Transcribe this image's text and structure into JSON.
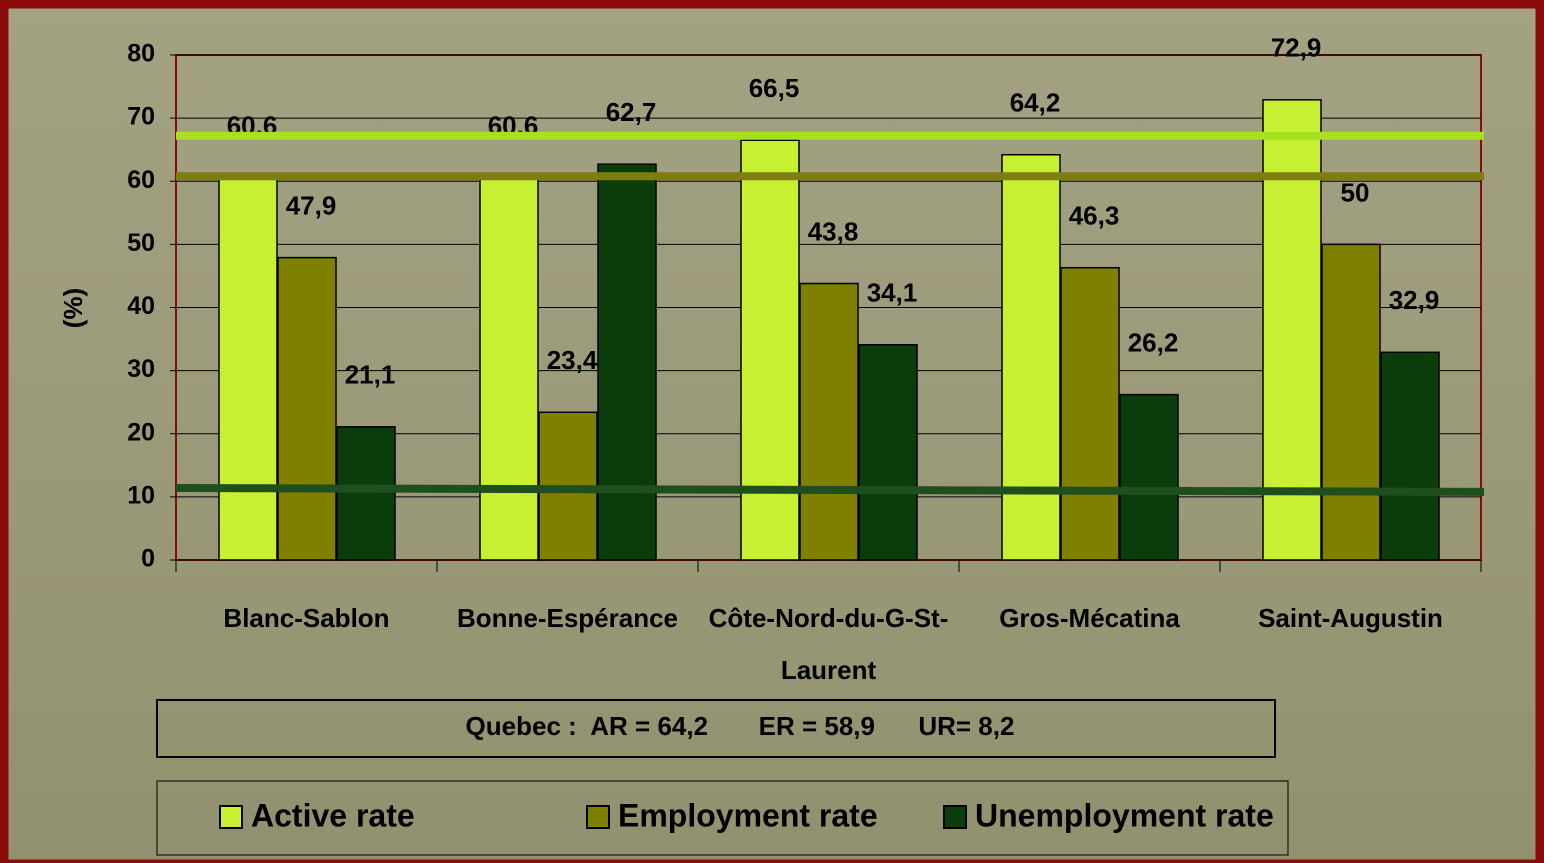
{
  "chart_data": {
    "type": "bar",
    "y_label": "(%)",
    "categories": [
      "Blanc-Sablon",
      "Bonne-Espérance",
      "Côte-Nord-du-G-St-Laurent",
      "Gros-Mécatina",
      "Saint-Augustin"
    ],
    "series": [
      {
        "name": "Active rate",
        "color": "#c8f032",
        "values": [
          60.6,
          60.6,
          66.5,
          64.2,
          72.9
        ],
        "value_labels": [
          "60,6",
          "60,6",
          "66,5",
          "64,2",
          "72,9"
        ]
      },
      {
        "name": "Employment rate",
        "color": "#808000",
        "values": [
          47.9,
          23.4,
          43.8,
          46.3,
          50
        ],
        "value_labels": [
          "47,9",
          "23,4",
          "43,8",
          "46,3",
          "50"
        ]
      },
      {
        "name": "Unemployment rate",
        "color": "#0b3d0b",
        "values": [
          21.1,
          62.7,
          34.1,
          26.2,
          32.9
        ],
        "value_labels": [
          "21,1",
          "62,7",
          "34,1",
          "26,2",
          "32,9"
        ]
      }
    ],
    "reference_lines": [
      {
        "color": "#a8e020",
        "values": [
          67.2,
          67.2
        ]
      },
      {
        "color": "#7d7d10",
        "values": [
          60.8,
          60.8
        ]
      },
      {
        "color": "#1f4f1f",
        "values": [
          11.4,
          10.8
        ]
      }
    ],
    "annotation": "Quebec :  AR = 64,2       ER = 58,9      UR= 8,2",
    "ylim": [
      0,
      80
    ],
    "yticks": [
      0,
      10,
      20,
      30,
      40,
      50,
      60,
      70,
      80
    ],
    "grid": true
  }
}
